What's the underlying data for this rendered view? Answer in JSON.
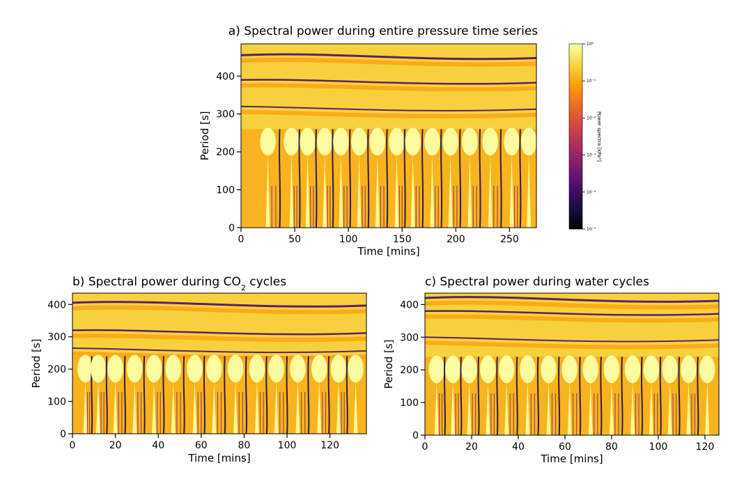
{
  "figure": {
    "colormap": "inferno",
    "colormap_stops": [
      "#000004",
      "#1b0c41",
      "#4a0c6b",
      "#781c6d",
      "#a52c60",
      "#cf4446",
      "#ed6925",
      "#fb9b06",
      "#f7d13d",
      "#fcffa4"
    ]
  },
  "chart_data": [
    {
      "id": "a",
      "type": "heatmap",
      "title": "a) Spectral power during entire pressure time series",
      "xlabel": "Time [mins]",
      "ylabel": "Period [s]",
      "xlim": [
        0,
        275
      ],
      "ylim": [
        0,
        485
      ],
      "xticks": [
        0,
        50,
        100,
        150,
        200,
        250
      ],
      "yticks": [
        0,
        100,
        200,
        300,
        400
      ],
      "band_top_periods": [
        455,
        390,
        320
      ],
      "fingers": {
        "centers": [
          25,
          47,
          62,
          78,
          93,
          110,
          127,
          145,
          160,
          178,
          195,
          213,
          232,
          252,
          268
        ],
        "top_period": 260
      }
    },
    {
      "id": "b",
      "type": "heatmap",
      "title_pre": "b) Spectral power during CO",
      "title_sub": "2",
      "title_post": " cycles",
      "xlabel": "Time [mins]",
      "ylabel": "Period [s]",
      "xlim": [
        0,
        137
      ],
      "ylim": [
        0,
        435
      ],
      "xticks": [
        0,
        20,
        40,
        60,
        80,
        100,
        120
      ],
      "yticks": [
        0,
        100,
        200,
        300,
        400
      ],
      "band_top_periods": [
        405,
        320,
        265
      ],
      "fingers": {
        "centers": [
          6,
          12,
          20,
          29,
          38,
          47,
          57,
          66,
          76,
          86,
          95,
          105,
          115,
          124,
          132
        ],
        "top_period": 240
      }
    },
    {
      "id": "c",
      "type": "heatmap",
      "title": "c) Spectral power during water cycles",
      "xlabel": "Time [mins]",
      "ylabel": "Period [s]",
      "xlim": [
        0,
        126
      ],
      "ylim": [
        0,
        435
      ],
      "xticks": [
        0,
        20,
        40,
        60,
        80,
        100,
        120
      ],
      "yticks": [
        0,
        100,
        200,
        300,
        400
      ],
      "band_top_periods": [
        420,
        380,
        300
      ],
      "fingers": {
        "centers": [
          5,
          12,
          19,
          27,
          35,
          44,
          53,
          62,
          71,
          80,
          89,
          97,
          105,
          113,
          121
        ],
        "top_period": 240
      }
    }
  ],
  "colorbar": {
    "label": "Power spectra [kPa²]",
    "ticks": [
      "10⁰",
      "10⁻¹",
      "10⁻²",
      "10⁻³",
      "10⁻⁴",
      "10⁻⁵"
    ]
  }
}
